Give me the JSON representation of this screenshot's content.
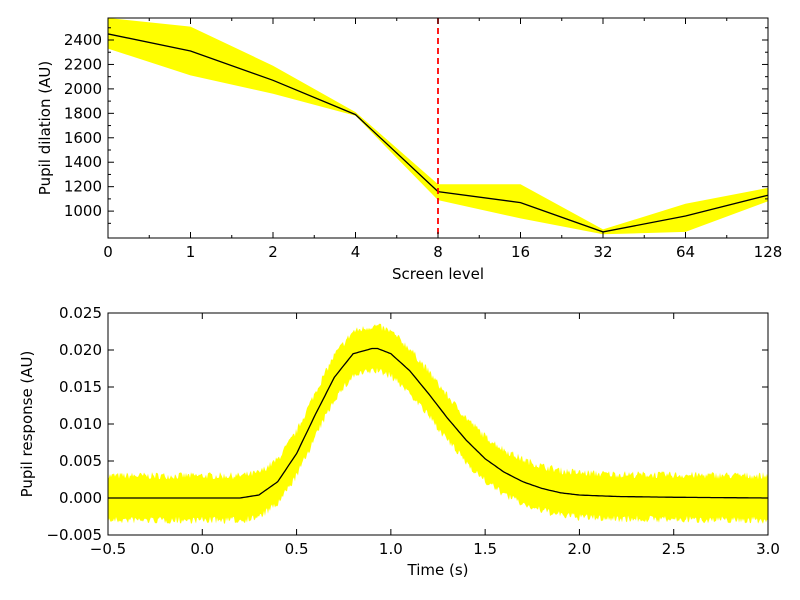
{
  "colors": {
    "band": "#ffff00",
    "line": "#000000",
    "marker_line": "#ff0000",
    "axes": "#000000",
    "background": "#ffffff"
  },
  "chart_data": [
    {
      "type": "line",
      "xlabel": "Screen level",
      "ylabel": "Pupil dilation (AU)",
      "x_scale": "categorical",
      "categories": [
        "0",
        "1",
        "2",
        "4",
        "8",
        "16",
        "32",
        "64",
        "128"
      ],
      "series": [
        {
          "values": [
            2450,
            2310,
            2070,
            1790,
            1160,
            1070,
            830,
            960,
            1130
          ],
          "band_lower": [
            2330,
            2110,
            1960,
            1780,
            1090,
            940,
            810,
            830,
            1080
          ],
          "band_upper": [
            2580,
            2510,
            2190,
            1810,
            1220,
            1220,
            850,
            1060,
            1190
          ]
        }
      ],
      "vline": {
        "category": "8",
        "style": "dashed"
      },
      "ylim": [
        780,
        2580
      ],
      "yticks": [
        1000,
        1200,
        1400,
        1600,
        1800,
        2000,
        2200,
        2400
      ],
      "ytick_labels": [
        "1000",
        "1200",
        "1400",
        "1600",
        "1800",
        "2000",
        "2200",
        "2400"
      ],
      "grid": false,
      "legend": false
    },
    {
      "type": "line",
      "xlabel": "Time (s)",
      "ylabel": "Pupil response (AU)",
      "xlim": [
        -0.5,
        3.0
      ],
      "ylim": [
        -0.005,
        0.025
      ],
      "xticks": [
        -0.5,
        0.0,
        0.5,
        1.0,
        1.5,
        2.0,
        2.5,
        3.0
      ],
      "xtick_labels": [
        "−0.5",
        "0.0",
        "0.5",
        "1.0",
        "1.5",
        "2.0",
        "2.5",
        "3.0"
      ],
      "yticks": [
        -0.005,
        0.0,
        0.005,
        0.01,
        0.015,
        0.02,
        0.025
      ],
      "ytick_labels": [
        "−0.005",
        "0.000",
        "0.005",
        "0.010",
        "0.015",
        "0.020",
        "0.025"
      ],
      "series": [
        {
          "x": [
            -0.5,
            0.2,
            0.3,
            0.4,
            0.5,
            0.6,
            0.7,
            0.8,
            0.9,
            0.93,
            1.0,
            1.1,
            1.2,
            1.3,
            1.4,
            1.5,
            1.6,
            1.7,
            1.8,
            1.9,
            2.0,
            2.2,
            2.5,
            3.0
          ],
          "y": [
            0.0,
            0.0,
            0.0004,
            0.0022,
            0.006,
            0.0113,
            0.0163,
            0.0195,
            0.0202,
            0.0202,
            0.0195,
            0.0172,
            0.0141,
            0.0108,
            0.0078,
            0.0053,
            0.0035,
            0.0022,
            0.0013,
            0.0007,
            0.0004,
            0.0002,
            0.0001,
            0.0
          ],
          "band_halfwidth": 0.0035
        }
      ],
      "grid": false,
      "legend": false
    }
  ]
}
